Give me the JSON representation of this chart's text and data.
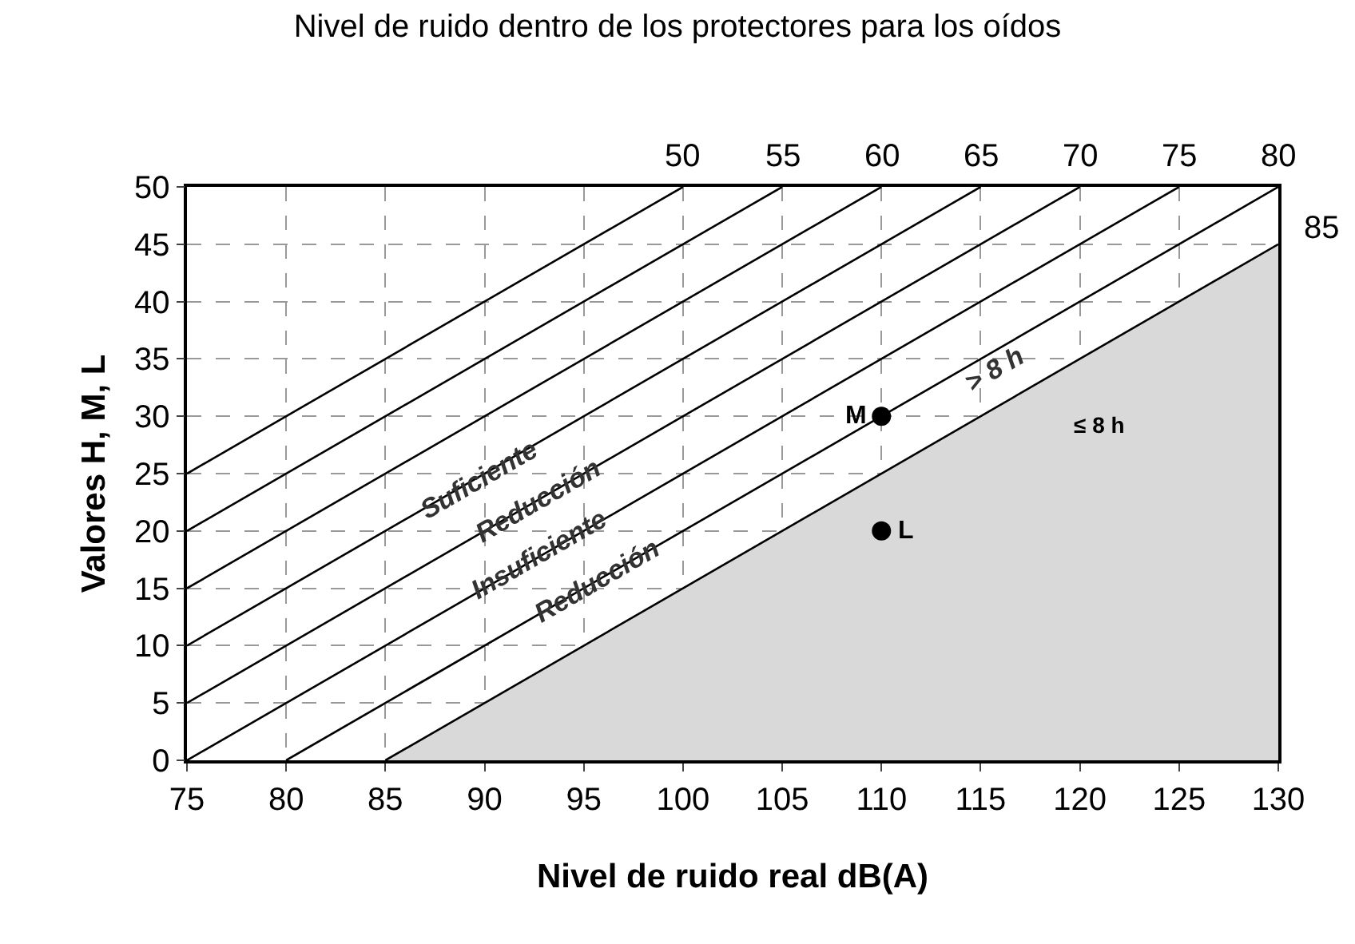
{
  "chart_data": {
    "type": "line",
    "title": "Nivel de ruido dentro de los protectores para los oídos",
    "xlabel": "Nivel de ruido real dB(A)",
    "ylabel": "Valores H, M, L",
    "xlim": [
      75,
      130
    ],
    "ylim": [
      0,
      50
    ],
    "xticks": [
      75,
      80,
      85,
      90,
      95,
      100,
      105,
      110,
      115,
      120,
      125,
      130
    ],
    "yticks": [
      0,
      5,
      10,
      15,
      20,
      25,
      30,
      35,
      40,
      45,
      50
    ],
    "grid": true,
    "legend": false,
    "marker": "none",
    "line_style": "solid",
    "series": [
      {
        "name": "50",
        "color": "#000000",
        "x": [
          75,
          100
        ],
        "values": [
          25,
          50
        ]
      },
      {
        "name": "55",
        "color": "#000000",
        "x": [
          75,
          105
        ],
        "values": [
          20,
          50
        ]
      },
      {
        "name": "60",
        "color": "#000000",
        "x": [
          75,
          110
        ],
        "values": [
          15,
          50
        ]
      },
      {
        "name": "65",
        "color": "#000000",
        "x": [
          75,
          115
        ],
        "values": [
          10,
          50
        ]
      },
      {
        "name": "70",
        "color": "#000000",
        "x": [
          75,
          120
        ],
        "values": [
          5,
          50
        ]
      },
      {
        "name": "75",
        "color": "#000000",
        "x": [
          75,
          125
        ],
        "values": [
          0,
          50
        ]
      },
      {
        "name": "80",
        "color": "#000000",
        "x": [
          80,
          130
        ],
        "values": [
          0,
          50
        ]
      },
      {
        "name": "85",
        "type": "area",
        "color": "#d9d9d9",
        "x": [
          85,
          130
        ],
        "values": [
          0,
          45
        ]
      },
      {
        "name": "M",
        "type": "scatter",
        "marker": "circle",
        "color": "#000000",
        "x": [
          110
        ],
        "values": [
          30
        ]
      },
      {
        "name": "L",
        "type": "scatter",
        "marker": "circle",
        "color": "#000000",
        "x": [
          110
        ],
        "values": [
          20
        ]
      }
    ],
    "annotations": [
      {
        "text": "Suficiente",
        "x": 90,
        "y": 20
      },
      {
        "text": "Reducción",
        "x": 93,
        "y": 18
      },
      {
        "text": "Insuficiente",
        "x": 93,
        "y": 13
      },
      {
        "text": "Reducción",
        "x": 96,
        "y": 11
      },
      {
        "text": "> 8 h",
        "x": 116,
        "y": 31
      },
      "≤ 8 h"
    ]
  }
}
